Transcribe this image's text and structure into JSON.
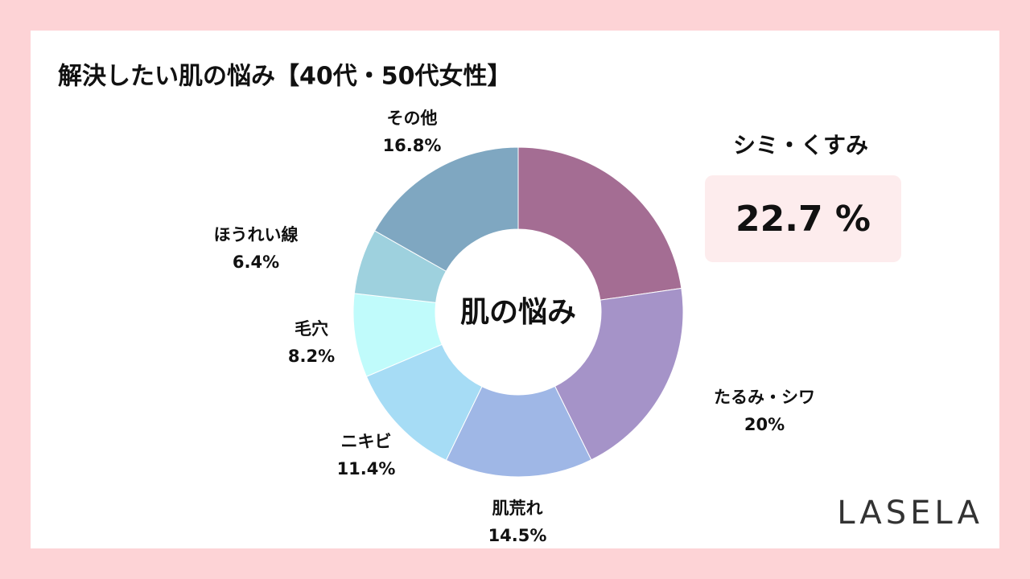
{
  "chart_data": {
    "type": "donut",
    "title": "解決したい肌の悩み【40代・50代女性】",
    "center_label": "肌の悩み",
    "categories": [
      "シミ・くすみ",
      "たるみ・シワ",
      "肌荒れ",
      "ニキビ",
      "毛穴",
      "ほうれい線",
      "その他"
    ],
    "values": [
      22.7,
      20,
      14.5,
      11.4,
      8.2,
      6.4,
      16.8
    ],
    "value_labels": [
      "22.7 %",
      "20%",
      "14.5%",
      "11.4%",
      "8.2%",
      "6.4%",
      "16.8%"
    ],
    "colors": [
      "#a46d93",
      "#a593c8",
      "#9fb7e6",
      "#a6dcf5",
      "#c0fbfb",
      "#9ed1de",
      "#7fa7c1"
    ],
    "highlight_color": "#f5565b",
    "brand": "LASELA"
  }
}
